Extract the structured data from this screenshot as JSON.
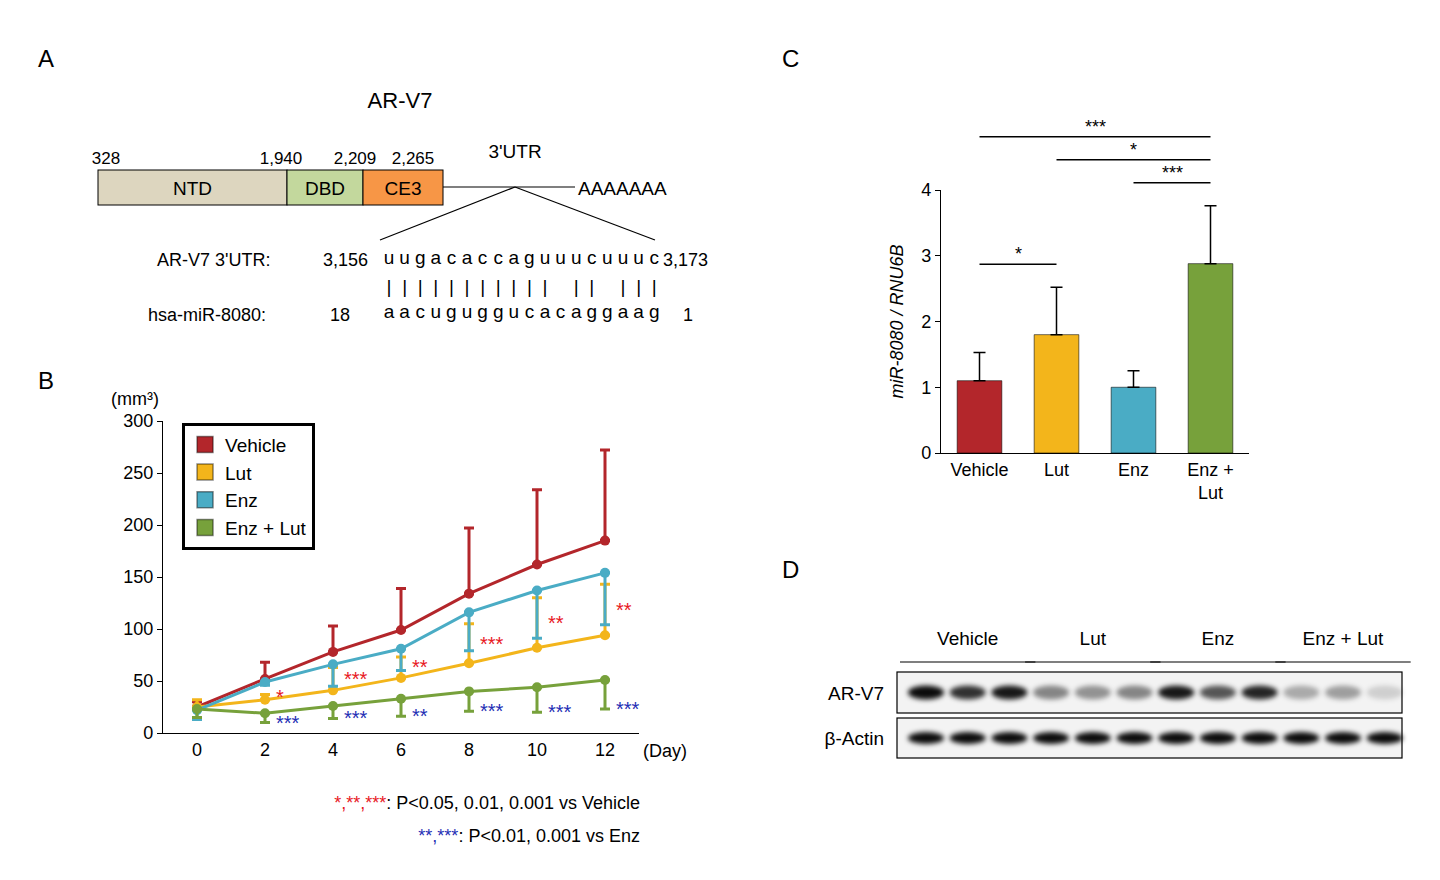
{
  "chart_data": [
    {
      "panel_label": "B",
      "type": "line",
      "y_label": "(mm³)",
      "x_label": "(Day)",
      "x": [
        0,
        2,
        4,
        6,
        8,
        10,
        12
      ],
      "xlim": [
        -1,
        13
      ],
      "xticks": [
        0,
        2,
        4,
        6,
        8,
        10,
        12
      ],
      "ylim": [
        0,
        300
      ],
      "yticks": [
        0,
        50,
        100,
        150,
        200,
        250,
        300
      ],
      "grid": false,
      "legend": "upper left",
      "marker": "circle",
      "series": [
        {
          "name": "Vehicle",
          "color": "#b3262b",
          "values": [
            25,
            52,
            78,
            99,
            134,
            162,
            185
          ],
          "error_plus": [
            5,
            16,
            25,
            40,
            63,
            72,
            87
          ]
        },
        {
          "name": "Lut",
          "color": "#f3b51b",
          "values": [
            25,
            32,
            41,
            53,
            67,
            82,
            94
          ],
          "error_plus": [
            7,
            5,
            22,
            20,
            38,
            48,
            49
          ]
        },
        {
          "name": "Enz",
          "color": "#4aacc5",
          "values": [
            22,
            49,
            66,
            81,
            116,
            137,
            154
          ],
          "error_minus": [
            9,
            3,
            21,
            21,
            37,
            46,
            50
          ]
        },
        {
          "name": "Enz + Lut",
          "color": "#77a13b",
          "values": [
            23,
            19,
            26,
            33,
            40,
            44,
            51
          ],
          "error_minus": [
            8,
            9,
            12,
            17,
            19,
            24,
            28
          ]
        }
      ],
      "significance": [
        {
          "series": "Lut",
          "color": "#e8191f",
          "labels": [
            null,
            "*",
            "***",
            "**",
            "***",
            "**",
            "**"
          ],
          "note_stars": "*,**,***",
          "note": ": P<0.05, 0.01, 0.001 vs Vehicle"
        },
        {
          "series": "Enz + Lut",
          "color": "#1f2fb5",
          "labels": [
            null,
            "***",
            "***",
            "**",
            "***",
            "***",
            "***"
          ],
          "note_stars": "**,***",
          "note": ": P<0.01, 0.001 vs Enz"
        }
      ]
    },
    {
      "panel_label": "C",
      "type": "bar",
      "y_label": "miR-8080 / RNU6B",
      "categories": [
        "Vehicle",
        "Lut",
        "Enz",
        "Enz + Lut"
      ],
      "values": [
        1.1,
        1.8,
        1.0,
        2.88
      ],
      "error_plus": [
        0.43,
        0.72,
        0.25,
        0.88
      ],
      "colors": [
        "#b3262b",
        "#f3b51b",
        "#4aacc5",
        "#77a13b"
      ],
      "ylim": [
        0,
        4
      ],
      "yticks": [
        0,
        1,
        2,
        3,
        4
      ],
      "grid": false,
      "brackets": [
        {
          "from": "Vehicle",
          "to": "Lut",
          "text": "*"
        },
        {
          "from": "Enz",
          "to": "Enz + Lut",
          "text": "***"
        },
        {
          "from": "Lut",
          "to": "Enz + Lut",
          "text": "*"
        },
        {
          "from": "Vehicle",
          "to": "Enz + Lut",
          "text": "***"
        }
      ]
    }
  ],
  "diagram": {
    "panel_label": "A",
    "title": "AR-V7",
    "domains": [
      {
        "name": "NTD",
        "color": "#ddd6bf"
      },
      {
        "name": "DBD",
        "color": "#c3d89d"
      },
      {
        "name": "CE3",
        "color": "#f79646"
      }
    ],
    "positions": [
      "328",
      "1,940",
      "2,209",
      "2,265"
    ],
    "utr_label": "3'UTR",
    "poly_a": "AAAAAAA",
    "alignment": {
      "target": {
        "label": "AR-V7 3'UTR:",
        "start": "3,156",
        "sequence": "uugacaccaguuucuuuc",
        "end": "3,173"
      },
      "pairing": "||||||||||| || |||",
      "mirna": {
        "label": "hsa-miR-8080:",
        "start": "18",
        "sequence": "aacuguggucacaggaag",
        "end": "1"
      }
    }
  },
  "blot": {
    "panel_label": "D",
    "groups": [
      "Vehicle",
      "Lut",
      "Enz",
      "Enz + Lut"
    ],
    "rows": [
      {
        "label": "AR-V7",
        "intensity": [
          0.95,
          0.8,
          0.9,
          0.45,
          0.4,
          0.45,
          0.9,
          0.65,
          0.85,
          0.3,
          0.35,
          0.15
        ]
      },
      {
        "label": "β-Actin",
        "intensity": [
          0.95,
          0.95,
          0.95,
          0.95,
          0.95,
          0.95,
          0.95,
          0.95,
          0.95,
          0.95,
          0.95,
          0.95
        ]
      }
    ]
  }
}
